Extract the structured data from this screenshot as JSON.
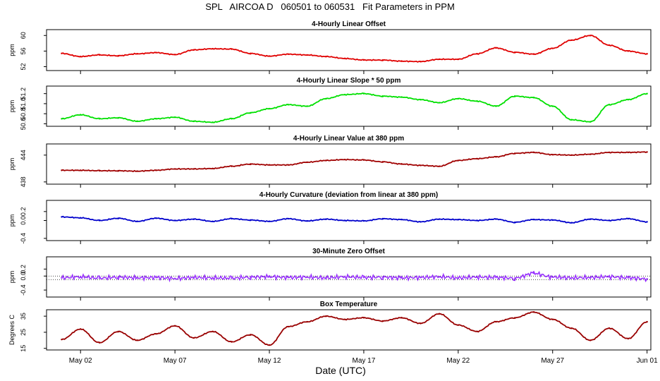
{
  "title": "SPL   AIRCOA D   060501 to 060531   Fit Parameters in PPM",
  "xlabel": "Date (UTC)",
  "x_ticks": [
    "May 02",
    "May 07",
    "May 12",
    "May 17",
    "May 22",
    "May 27",
    "Jun 01"
  ],
  "colors": {
    "offset": "#e00000",
    "slope": "#00e000",
    "value": "#a00000",
    "curvature": "#0000cc",
    "zero": "#9933ff",
    "temperature": "#990000"
  },
  "chart_data": [
    {
      "type": "line",
      "title": "4-Hourly Linear Offset",
      "ylabel": "ppm",
      "yticks": [
        "52",
        "56",
        "60"
      ],
      "ylim": [
        51,
        61.5
      ],
      "xlim": [
        0.2,
        32.2
      ],
      "series": [
        {
          "color": "#e00000",
          "x": [
            1,
            2,
            3,
            4,
            5,
            6,
            7,
            8,
            9,
            10,
            11,
            12,
            13,
            14,
            15,
            16,
            17,
            18,
            19,
            20,
            21,
            22,
            23,
            24,
            25,
            26,
            27,
            28,
            29,
            30,
            31,
            32
          ],
          "y": [
            55.4,
            54.6,
            55.0,
            54.8,
            55.3,
            55.6,
            55.1,
            56.3,
            56.6,
            56.5,
            55.4,
            54.7,
            55.2,
            55.0,
            54.6,
            54.1,
            53.7,
            53.7,
            53.4,
            53.3,
            53.9,
            53.9,
            55.3,
            56.8,
            55.7,
            55.2,
            56.7,
            58.8,
            60.0,
            57.5,
            56.0,
            55.3
          ]
        }
      ]
    },
    {
      "type": "line",
      "title": "4-Hourly Linear Slope * 50 ppm",
      "ylabel": "ppm",
      "yticks": [
        "50.6",
        "50.8",
        "51.0",
        "51.2"
      ],
      "ylim": [
        50.55,
        51.35
      ],
      "xlim": [
        0.2,
        32.2
      ],
      "series": [
        {
          "color": "#00e000",
          "x": [
            1,
            2,
            3,
            4,
            5,
            6,
            7,
            8,
            9,
            10,
            11,
            12,
            13,
            14,
            15,
            16,
            17,
            18,
            19,
            20,
            21,
            22,
            23,
            24,
            25,
            26,
            27,
            28,
            29,
            30,
            31,
            32
          ],
          "y": [
            50.7,
            50.78,
            50.7,
            50.72,
            50.65,
            50.7,
            50.73,
            50.65,
            50.63,
            50.7,
            50.82,
            50.9,
            50.98,
            50.95,
            51.1,
            51.18,
            51.2,
            51.15,
            51.13,
            51.08,
            51.02,
            51.1,
            51.05,
            50.95,
            51.15,
            51.12,
            50.95,
            50.68,
            50.64,
            50.98,
            51.08,
            51.2
          ]
        }
      ]
    },
    {
      "type": "line",
      "title": "4-Hourly Linear Value at 380 ppm",
      "ylabel": "ppm",
      "yticks": [
        "438",
        "444"
      ],
      "ylim": [
        437.5,
        446.5
      ],
      "xlim": [
        0.2,
        32.2
      ],
      "series": [
        {
          "color": "#a00000",
          "x": [
            1,
            2,
            3,
            4,
            5,
            6,
            7,
            8,
            9,
            10,
            11,
            12,
            13,
            14,
            15,
            16,
            17,
            18,
            19,
            20,
            21,
            22,
            23,
            24,
            25,
            26,
            27,
            28,
            29,
            30,
            31,
            32
          ],
          "y": [
            440.6,
            440.6,
            440.5,
            440.5,
            440.4,
            440.6,
            440.9,
            440.9,
            441.0,
            441.5,
            442.0,
            441.8,
            441.8,
            442.4,
            442.8,
            443.0,
            442.9,
            442.5,
            442.0,
            441.7,
            441.5,
            442.8,
            443.2,
            443.6,
            444.4,
            444.6,
            444.1,
            444.0,
            444.2,
            444.6,
            444.6,
            444.7
          ]
        }
      ]
    },
    {
      "type": "line",
      "title": "4-Hourly Curvature (deviation from linear at 380 ppm)",
      "ylabel": "ppm",
      "yticks": [
        "-0.4",
        "0.0",
        "0.2"
      ],
      "ylim": [
        -0.45,
        0.45
      ],
      "xlim": [
        0.2,
        32.2
      ],
      "series": [
        {
          "color": "#0000cc",
          "x": [
            1,
            2,
            3,
            4,
            5,
            6,
            7,
            8,
            9,
            10,
            11,
            12,
            13,
            14,
            15,
            16,
            17,
            18,
            19,
            20,
            21,
            22,
            23,
            24,
            25,
            26,
            27,
            28,
            29,
            30,
            31,
            32
          ],
          "y": [
            0.08,
            0.06,
            0.0,
            0.05,
            -0.02,
            0.05,
            0.0,
            0.03,
            -0.02,
            0.04,
            0.01,
            -0.02,
            0.04,
            -0.01,
            0.03,
            0.0,
            -0.01,
            0.04,
            0.02,
            -0.03,
            0.03,
            0.02,
            0.0,
            0.03,
            -0.04,
            0.02,
            0.01,
            -0.05,
            0.03,
            0.0,
            0.04,
            -0.03
          ]
        }
      ]
    },
    {
      "type": "scatter",
      "title": "30-Minute Zero Offset",
      "ylabel": "ppm",
      "yticks": [
        "-0.4",
        "0.0",
        "0.2"
      ],
      "ylim": [
        -0.6,
        0.55
      ],
      "xlim": [
        0.2,
        32.2
      ],
      "reference_lines": [
        0.0,
        -0.1
      ],
      "series": [
        {
          "color": "#9933ff",
          "x": [
            1,
            2,
            3,
            4,
            5,
            6,
            7,
            8,
            9,
            10,
            11,
            12,
            13,
            14,
            15,
            16,
            17,
            18,
            19,
            20,
            21,
            22,
            23,
            24,
            25,
            26,
            27,
            28,
            29,
            30,
            31,
            32
          ],
          "y": [
            -0.05,
            -0.02,
            -0.06,
            -0.03,
            -0.05,
            -0.04,
            -0.07,
            -0.04,
            -0.05,
            -0.06,
            -0.03,
            -0.02,
            -0.04,
            -0.03,
            -0.05,
            -0.02,
            -0.04,
            -0.03,
            -0.05,
            -0.04,
            -0.02,
            -0.05,
            -0.03,
            -0.04,
            -0.06,
            0.08,
            -0.03,
            -0.05,
            -0.04,
            -0.02,
            -0.05,
            -0.08
          ]
        }
      ]
    },
    {
      "type": "line",
      "title": "Box Temperature",
      "ylabel": "Degrees C",
      "yticks": [
        "15",
        "25",
        "35"
      ],
      "ylim": [
        14,
        39
      ],
      "xlim": [
        0.2,
        32.2
      ],
      "series": [
        {
          "color": "#990000",
          "x": [
            1,
            2,
            3,
            4,
            5,
            6,
            7,
            8,
            9,
            10,
            11,
            12,
            13,
            14,
            15,
            16,
            17,
            18,
            19,
            20,
            21,
            22,
            23,
            24,
            25,
            26,
            27,
            28,
            29,
            30,
            31,
            32
          ],
          "y": [
            20.5,
            27.0,
            18.5,
            25.5,
            20.0,
            24.0,
            29.0,
            21.5,
            25.5,
            19.0,
            23.5,
            17.0,
            28.5,
            31.5,
            35.0,
            33.0,
            34.0,
            32.0,
            34.0,
            30.5,
            36.5,
            29.5,
            25.5,
            31.5,
            34.0,
            37.5,
            33.0,
            27.5,
            20.0,
            27.5,
            21.0,
            31.5
          ]
        }
      ]
    }
  ]
}
